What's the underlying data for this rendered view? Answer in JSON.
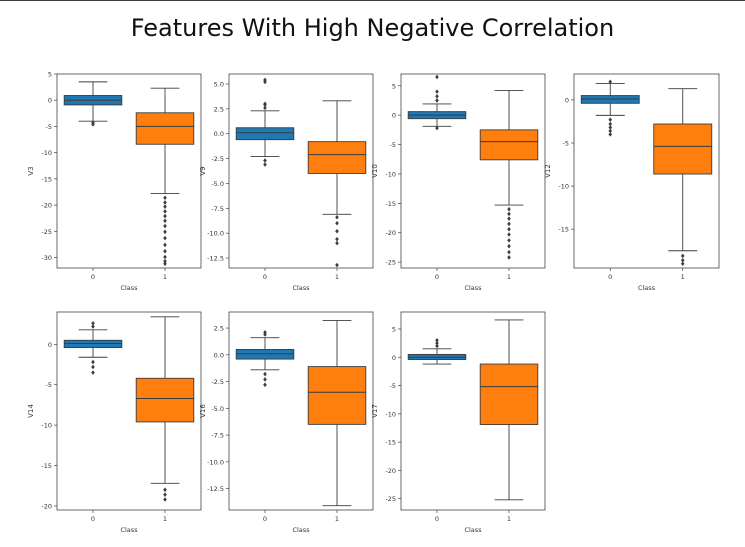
{
  "suptitle": "Features With High Negative Correlation",
  "colors": {
    "class0": "#1f77b4",
    "class1": "#ff7f0e",
    "whisker": "#3d3d3d",
    "frame": "#444444",
    "outlier": "#3d3d3d"
  },
  "chart_data": [
    {
      "type": "box",
      "ylabel": "V3",
      "xlabel": "Class",
      "categories": [
        "0",
        "1"
      ],
      "ylim": [
        -32,
        5
      ],
      "yticks": [
        5,
        0,
        -5,
        -10,
        -15,
        -20,
        -25,
        -30
      ],
      "boxes": [
        {
          "category": "0",
          "whisker_low": -4,
          "q1": -0.9,
          "median": 0,
          "q3": 0.9,
          "whisker_high": 3.5,
          "outliers": [
            -4.3,
            -4.6
          ]
        },
        {
          "category": "1",
          "whisker_low": -17.8,
          "q1": -8.4,
          "median": -5.0,
          "q3": -2.4,
          "whisker_high": 2.3,
          "outliers": [
            -18.6,
            -19.5,
            -20.3,
            -21.2,
            -22.1,
            -23.0,
            -24.0,
            -25.1,
            -26.3,
            -27.6,
            -28.8,
            -29.9,
            -30.7,
            -31.2
          ]
        }
      ]
    },
    {
      "type": "box",
      "ylabel": "V9",
      "xlabel": "Class",
      "categories": [
        "0",
        "1"
      ],
      "ylim": [
        -13.5,
        6
      ],
      "yticks": [
        5.0,
        2.5,
        0.0,
        -2.5,
        -5.0,
        -7.5,
        -10.0,
        -12.5
      ],
      "boxes": [
        {
          "category": "0",
          "whisker_low": -2.3,
          "q1": -0.6,
          "median": 0.1,
          "q3": 0.6,
          "whisker_high": 2.3,
          "outliers": [
            2.6,
            2.9,
            3.0,
            -2.7,
            -3.1,
            5.2,
            5.4
          ]
        },
        {
          "category": "1",
          "whisker_low": -8.1,
          "q1": -4.0,
          "median": -2.1,
          "q3": -0.8,
          "whisker_high": 3.3,
          "outliers": [
            -8.4,
            -9.0,
            -9.8,
            -10.6,
            -11.0,
            -13.2
          ]
        }
      ]
    },
    {
      "type": "box",
      "ylabel": "V10",
      "xlabel": "Class",
      "categories": [
        "0",
        "1"
      ],
      "ylim": [
        -26,
        7
      ],
      "yticks": [
        5,
        0,
        -5,
        -10,
        -15,
        -20,
        -25
      ],
      "boxes": [
        {
          "category": "0",
          "whisker_low": -1.9,
          "q1": -0.6,
          "median": 0,
          "q3": 0.6,
          "whisker_high": 1.9,
          "outliers": [
            2.5,
            3.2,
            4.0,
            -2.2,
            6.5
          ]
        },
        {
          "category": "1",
          "whisker_low": -15.3,
          "q1": -7.6,
          "median": -4.5,
          "q3": -2.5,
          "whisker_high": 4.2,
          "outliers": [
            -16.0,
            -16.8,
            -17.6,
            -18.5,
            -19.4,
            -20.3,
            -21.3,
            -22.3,
            -23.3,
            -24.2
          ]
        }
      ]
    },
    {
      "type": "box",
      "ylabel": "V12",
      "xlabel": "Class",
      "categories": [
        "0",
        "1"
      ],
      "ylim": [
        -19.5,
        3
      ],
      "yticks": [
        0,
        -5,
        -10,
        -15
      ],
      "boxes": [
        {
          "category": "0",
          "whisker_low": -1.8,
          "q1": -0.4,
          "median": 0.1,
          "q3": 0.5,
          "whisker_high": 1.9,
          "outliers": [
            -2.3,
            -2.8,
            -3.2,
            -3.6,
            -4.0,
            2.1
          ]
        },
        {
          "category": "1",
          "whisker_low": -17.5,
          "q1": -8.6,
          "median": -5.4,
          "q3": -2.8,
          "whisker_high": 1.3,
          "outliers": [
            -18.1,
            -18.6,
            -19.0
          ]
        }
      ]
    },
    {
      "type": "box",
      "ylabel": "V14",
      "xlabel": "Class",
      "categories": [
        "0",
        "1"
      ],
      "ylim": [
        -20.5,
        4
      ],
      "yticks": [
        0,
        -5,
        -10,
        -15,
        -20
      ],
      "boxes": [
        {
          "category": "0",
          "whisker_low": -1.6,
          "q1": -0.4,
          "median": 0.1,
          "q3": 0.5,
          "whisker_high": 1.8,
          "outliers": [
            2.2,
            2.6,
            -2.2,
            -2.8,
            -3.5
          ]
        },
        {
          "category": "1",
          "whisker_low": -17.2,
          "q1": -9.6,
          "median": -6.7,
          "q3": -4.2,
          "whisker_high": 3.4,
          "outliers": [
            -18.0,
            -18.6,
            -19.2
          ]
        }
      ]
    },
    {
      "type": "box",
      "ylabel": "V16",
      "xlabel": "Class",
      "categories": [
        "0",
        "1"
      ],
      "ylim": [
        -14.5,
        4
      ],
      "yticks": [
        2.5,
        0.0,
        -2.5,
        -5.0,
        -7.5,
        -10.0,
        -12.5
      ],
      "boxes": [
        {
          "category": "0",
          "whisker_low": -1.4,
          "q1": -0.4,
          "median": 0.1,
          "q3": 0.5,
          "whisker_high": 1.6,
          "outliers": [
            1.9,
            2.1,
            -1.8,
            -2.3,
            -2.8
          ]
        },
        {
          "category": "1",
          "whisker_low": -14.1,
          "q1": -6.5,
          "median": -3.5,
          "q3": -1.1,
          "whisker_high": 3.2,
          "outliers": []
        }
      ]
    },
    {
      "type": "box",
      "ylabel": "V17",
      "xlabel": "Class",
      "categories": [
        "0",
        "1"
      ],
      "ylim": [
        -27,
        8
      ],
      "yticks": [
        5,
        0,
        -5,
        -10,
        -15,
        -20,
        -25
      ],
      "boxes": [
        {
          "category": "0",
          "whisker_low": -1.2,
          "q1": -0.4,
          "median": 0,
          "q3": 0.5,
          "whisker_high": 1.5,
          "outliers": [
            2.0,
            2.5,
            3.0
          ]
        },
        {
          "category": "1",
          "whisker_low": -25.2,
          "q1": -11.9,
          "median": -5.2,
          "q3": -1.2,
          "whisker_high": 6.6,
          "outliers": []
        }
      ]
    }
  ]
}
